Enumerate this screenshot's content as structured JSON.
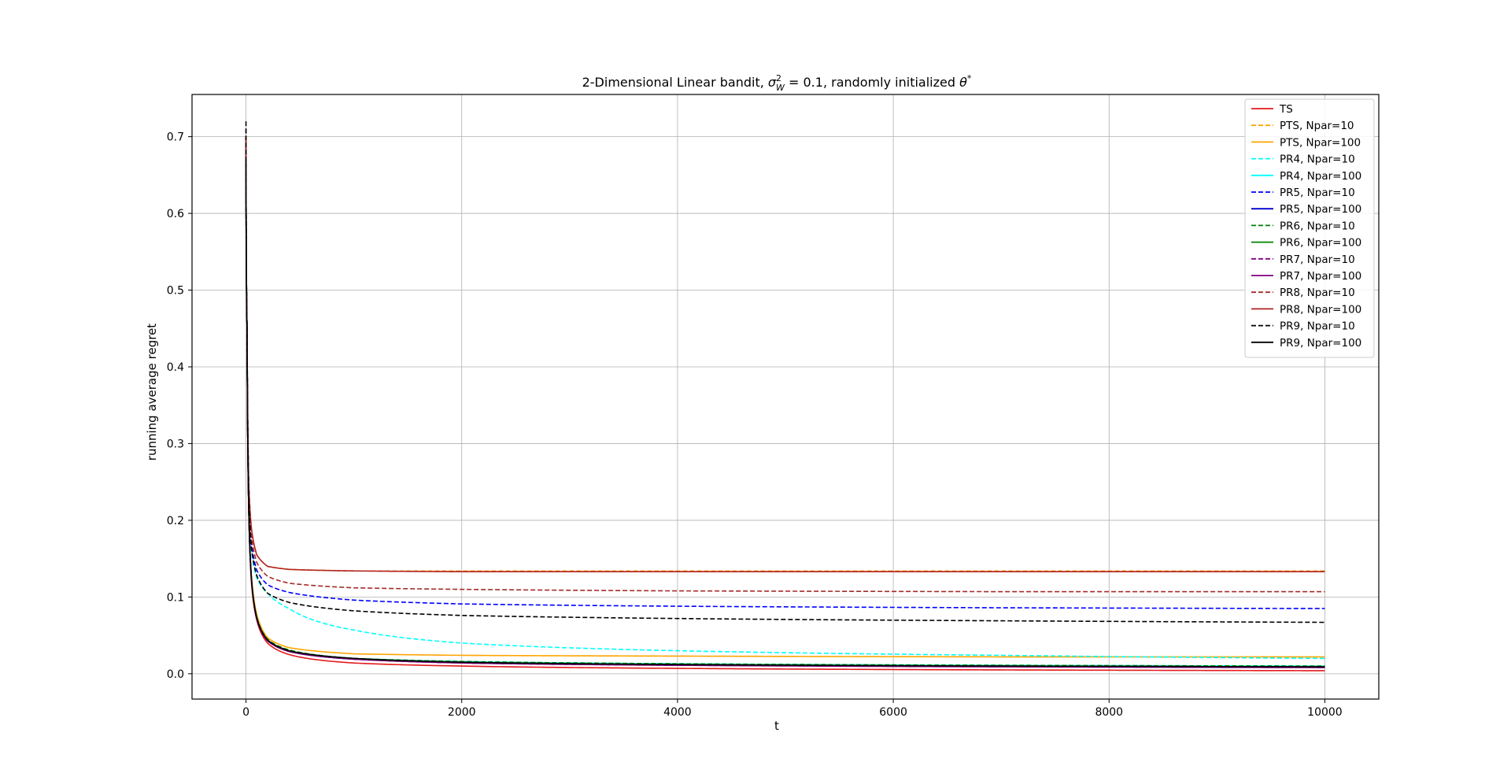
{
  "chart_data": {
    "type": "line",
    "title_parts": {
      "prefix": "2-Dimensional Linear bandit, ",
      "sigma": "σ",
      "sigma_sup": "2",
      "sigma_sub": "W",
      "middle": " = 0.1, randomly initialized ",
      "theta": "θ",
      "theta_sup": "*"
    },
    "xlabel": "t",
    "ylabel": "running average regret",
    "xlim": [
      -500,
      10500
    ],
    "ylim": [
      -0.033,
      0.755
    ],
    "xticks": [
      0,
      2000,
      4000,
      6000,
      8000,
      10000
    ],
    "xtick_labels": [
      "0",
      "2000",
      "4000",
      "6000",
      "8000",
      "10000"
    ],
    "yticks": [
      0.0,
      0.1,
      0.2,
      0.3,
      0.4,
      0.5,
      0.6,
      0.7
    ],
    "ytick_labels": [
      "0.0",
      "0.1",
      "0.2",
      "0.3",
      "0.4",
      "0.5",
      "0.6",
      "0.7"
    ],
    "grid": true,
    "legend_position": "top-right",
    "x": [
      0,
      10,
      25,
      50,
      100,
      200,
      400,
      1000,
      2000,
      4000,
      7000,
      10000
    ],
    "series": [
      {
        "name": "TS",
        "color": "#e41a1c",
        "dash": false,
        "values": [
          0.7,
          0.45,
          0.22,
          0.12,
          0.07,
          0.04,
          0.025,
          0.014,
          0.01,
          0.007,
          0.005,
          0.004
        ]
      },
      {
        "name": "PTS, Npar=10",
        "color": "#ffa500",
        "dash": true,
        "values": [
          0.7,
          0.45,
          0.25,
          0.19,
          0.155,
          0.14,
          0.136,
          0.134,
          0.134,
          0.134,
          0.134,
          0.134
        ]
      },
      {
        "name": "PTS, Npar=100",
        "color": "#ffa500",
        "dash": false,
        "values": [
          0.7,
          0.45,
          0.23,
          0.13,
          0.078,
          0.047,
          0.034,
          0.026,
          0.024,
          0.023,
          0.022,
          0.022
        ]
      },
      {
        "name": "PR4, Npar=10",
        "color": "#00ffff",
        "dash": true,
        "values": [
          0.7,
          0.45,
          0.24,
          0.16,
          0.125,
          0.105,
          0.085,
          0.057,
          0.04,
          0.03,
          0.024,
          0.02
        ]
      },
      {
        "name": "PR4, Npar=100",
        "color": "#00ffff",
        "dash": false,
        "values": [
          0.7,
          0.45,
          0.22,
          0.125,
          0.074,
          0.044,
          0.03,
          0.02,
          0.016,
          0.013,
          0.011,
          0.01
        ]
      },
      {
        "name": "PR5, Npar=10",
        "color": "#0000ff",
        "dash": true,
        "values": [
          0.7,
          0.45,
          0.25,
          0.17,
          0.135,
          0.116,
          0.106,
          0.096,
          0.091,
          0.088,
          0.086,
          0.085
        ]
      },
      {
        "name": "PR5, Npar=100",
        "color": "#0000cd",
        "dash": false,
        "values": [
          0.7,
          0.45,
          0.22,
          0.125,
          0.072,
          0.043,
          0.029,
          0.019,
          0.015,
          0.012,
          0.01,
          0.009
        ]
      },
      {
        "name": "PR6, Npar=10",
        "color": "#008000",
        "dash": true,
        "values": [
          0.7,
          0.45,
          0.22,
          0.125,
          0.074,
          0.045,
          0.031,
          0.02,
          0.016,
          0.013,
          0.011,
          0.01
        ]
      },
      {
        "name": "PR6, Npar=100",
        "color": "#008000",
        "dash": false,
        "values": [
          0.7,
          0.45,
          0.22,
          0.125,
          0.073,
          0.044,
          0.03,
          0.02,
          0.015,
          0.012,
          0.01,
          0.009
        ]
      },
      {
        "name": "PR7, Npar=10",
        "color": "#800080",
        "dash": true,
        "values": [
          0.71,
          0.45,
          0.22,
          0.125,
          0.072,
          0.043,
          0.029,
          0.019,
          0.014,
          0.011,
          0.01,
          0.009
        ]
      },
      {
        "name": "PR7, Npar=100",
        "color": "#800080",
        "dash": false,
        "values": [
          0.69,
          0.45,
          0.22,
          0.125,
          0.072,
          0.043,
          0.029,
          0.019,
          0.014,
          0.011,
          0.009,
          0.008
        ]
      },
      {
        "name": "PR8, Npar=10",
        "color": "#a52a2a",
        "dash": true,
        "values": [
          0.7,
          0.45,
          0.25,
          0.18,
          0.145,
          0.127,
          0.118,
          0.112,
          0.11,
          0.108,
          0.107,
          0.107
        ]
      },
      {
        "name": "PR8, Npar=100",
        "color": "#b22222",
        "dash": false,
        "values": [
          0.7,
          0.45,
          0.25,
          0.19,
          0.155,
          0.14,
          0.136,
          0.134,
          0.133,
          0.133,
          0.133,
          0.133
        ]
      },
      {
        "name": "PR9, Npar=10",
        "color": "#000000",
        "dash": true,
        "values": [
          0.72,
          0.45,
          0.24,
          0.165,
          0.128,
          0.105,
          0.093,
          0.082,
          0.076,
          0.072,
          0.069,
          0.067
        ]
      },
      {
        "name": "PR9, Npar=100",
        "color": "#000000",
        "dash": false,
        "values": [
          0.67,
          0.45,
          0.22,
          0.125,
          0.073,
          0.044,
          0.03,
          0.02,
          0.015,
          0.012,
          0.01,
          0.009
        ]
      }
    ]
  }
}
